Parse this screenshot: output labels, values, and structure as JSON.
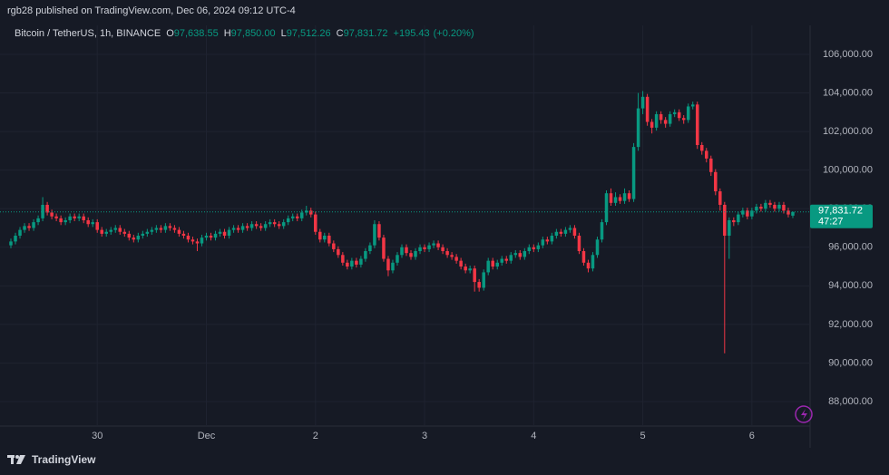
{
  "header": {
    "published": "rgb28 published on TradingView.com, Dec 06, 2024 09:12 UTC-4"
  },
  "chart_data": {
    "type": "candlestick",
    "symbol": "Bitcoin / TetherUS, 1h, BINANCE",
    "legend_fields": [
      {
        "key": "O",
        "value": 97638.55,
        "label": "97,638.55"
      },
      {
        "key": "H",
        "value": 97850,
        "label": "97,850.00"
      },
      {
        "key": "L",
        "value": 97512.26,
        "label": "97,512.26"
      },
      {
        "key": "C",
        "value": 97831.72,
        "label": "97,831.72"
      }
    ],
    "change": {
      "value": 195.43,
      "label": "+195.43"
    },
    "change_pct": {
      "value": 0.2,
      "label": "(+0.20%)"
    },
    "up_color": "#089981",
    "down_color": "#f23645",
    "last_price": {
      "value": 97831.72,
      "label": "97,831.72"
    },
    "countdown": "47:27",
    "xlim": [
      -0.4,
      174
    ],
    "xticks": [
      {
        "value": 19,
        "label": "30"
      },
      {
        "value": 43,
        "label": "Dec"
      },
      {
        "value": 67,
        "label": "2"
      },
      {
        "value": 91,
        "label": "3"
      },
      {
        "value": 115,
        "label": "4"
      },
      {
        "value": 139,
        "label": "5"
      },
      {
        "value": 163,
        "label": "6"
      }
    ],
    "ylim": [
      86730,
      106470
    ],
    "yticks": [
      {
        "value": 88000,
        "label": "88,000.00"
      },
      {
        "value": 90000,
        "label": "90,000.00"
      },
      {
        "value": 92000,
        "label": "92,000.00"
      },
      {
        "value": 94000,
        "label": "94,000.00"
      },
      {
        "value": 96000,
        "label": "96,000.00"
      },
      {
        "value": 98000,
        "label": "98,000.00"
      },
      {
        "value": 100000,
        "label": "100,000.00"
      },
      {
        "value": 102000,
        "label": "102,000.00"
      },
      {
        "value": 104000,
        "label": "104,000.00"
      },
      {
        "value": 106000,
        "label": "106,000.00"
      }
    ],
    "grid": true,
    "ohlc": [
      [
        96100,
        96450,
        95950,
        96300
      ],
      [
        96300,
        96750,
        96150,
        96600
      ],
      [
        96600,
        97050,
        96450,
        96900
      ],
      [
        96900,
        97250,
        96750,
        97100
      ],
      [
        97100,
        97250,
        96850,
        97000
      ],
      [
        97000,
        97450,
        96850,
        97300
      ],
      [
        97300,
        97650,
        97150,
        97500
      ],
      [
        97500,
        98600,
        97350,
        98200
      ],
      [
        98200,
        98350,
        97650,
        97800
      ],
      [
        97800,
        97950,
        97450,
        97600
      ],
      [
        97600,
        97750,
        97350,
        97500
      ],
      [
        97500,
        97650,
        97150,
        97300
      ],
      [
        97300,
        97550,
        97150,
        97400
      ],
      [
        97400,
        97750,
        97250,
        97600
      ],
      [
        97600,
        97750,
        97350,
        97500
      ],
      [
        97500,
        97750,
        97350,
        97600
      ],
      [
        97600,
        97750,
        97250,
        97400
      ],
      [
        97400,
        97550,
        97050,
        97200
      ],
      [
        97200,
        97450,
        97050,
        97300
      ],
      [
        97300,
        97450,
        96750,
        96900
      ],
      [
        96900,
        97050,
        96550,
        96700
      ],
      [
        96700,
        96950,
        96550,
        96800
      ],
      [
        96800,
        97050,
        96650,
        96900
      ],
      [
        96900,
        97150,
        96750,
        97000
      ],
      [
        97000,
        97150,
        96650,
        96800
      ],
      [
        96800,
        96950,
        96550,
        96700
      ],
      [
        96700,
        96850,
        96350,
        96500
      ],
      [
        96500,
        96650,
        96250,
        96400
      ],
      [
        96400,
        96750,
        96250,
        96600
      ],
      [
        96600,
        96850,
        96450,
        96700
      ],
      [
        96700,
        96950,
        96550,
        96800
      ],
      [
        96800,
        97050,
        96650,
        96900
      ],
      [
        96900,
        97150,
        96750,
        97000
      ],
      [
        97000,
        97150,
        96750,
        96900
      ],
      [
        96900,
        97250,
        96750,
        97100
      ],
      [
        97100,
        97250,
        96850,
        97000
      ],
      [
        97000,
        97150,
        96750,
        96900
      ],
      [
        96900,
        97050,
        96550,
        96700
      ],
      [
        96700,
        96850,
        96450,
        96600
      ],
      [
        96600,
        96750,
        96250,
        96400
      ],
      [
        96400,
        96550,
        96150,
        96300
      ],
      [
        96300,
        96450,
        95800,
        96200
      ],
      [
        96200,
        96650,
        96050,
        96500
      ],
      [
        96500,
        96750,
        96350,
        96600
      ],
      [
        96600,
        96750,
        96350,
        96500
      ],
      [
        96500,
        96850,
        96350,
        96700
      ],
      [
        96700,
        96950,
        96550,
        96800
      ],
      [
        96800,
        96950,
        96450,
        96600
      ],
      [
        96600,
        97050,
        96450,
        96900
      ],
      [
        96900,
        97150,
        96750,
        97000
      ],
      [
        97000,
        97150,
        96750,
        96900
      ],
      [
        96900,
        97250,
        96750,
        97100
      ],
      [
        97100,
        97250,
        96850,
        97000
      ],
      [
        97000,
        97350,
        96850,
        97200
      ],
      [
        97200,
        97350,
        96950,
        97100
      ],
      [
        97100,
        97250,
        96850,
        97000
      ],
      [
        97000,
        97350,
        96850,
        97200
      ],
      [
        97200,
        97450,
        97050,
        97300
      ],
      [
        97300,
        97450,
        97050,
        97200
      ],
      [
        97200,
        97350,
        96950,
        97100
      ],
      [
        97100,
        97450,
        96950,
        97300
      ],
      [
        97300,
        97650,
        97150,
        97500
      ],
      [
        97500,
        97750,
        97350,
        97600
      ],
      [
        97600,
        97750,
        97350,
        97500
      ],
      [
        97500,
        97950,
        97350,
        97800
      ],
      [
        97800,
        98150,
        97650,
        97900
      ],
      [
        97900,
        98050,
        97550,
        97700
      ],
      [
        97700,
        97850,
        96650,
        96800
      ],
      [
        96800,
        96950,
        96250,
        96400
      ],
      [
        96400,
        96750,
        96250,
        96600
      ],
      [
        96600,
        96750,
        96050,
        96200
      ],
      [
        96200,
        96350,
        95750,
        95900
      ],
      [
        95900,
        96050,
        95450,
        95600
      ],
      [
        95600,
        95750,
        95050,
        95200
      ],
      [
        95200,
        95350,
        94850,
        95000
      ],
      [
        95000,
        95450,
        94850,
        95300
      ],
      [
        95300,
        95450,
        94950,
        95100
      ],
      [
        95100,
        95550,
        94950,
        95400
      ],
      [
        95400,
        95950,
        95250,
        95800
      ],
      [
        95800,
        96250,
        95650,
        96100
      ],
      [
        96100,
        97400,
        95950,
        97200
      ],
      [
        97200,
        97350,
        96350,
        96500
      ],
      [
        96500,
        96650,
        95250,
        95400
      ],
      [
        95400,
        95550,
        94500,
        94800
      ],
      [
        94800,
        95350,
        94650,
        95200
      ],
      [
        95200,
        95750,
        95050,
        95600
      ],
      [
        95600,
        96150,
        95450,
        96000
      ],
      [
        96000,
        96150,
        95550,
        95700
      ],
      [
        95700,
        95850,
        95350,
        95500
      ],
      [
        95500,
        95950,
        95350,
        95800
      ],
      [
        95800,
        96150,
        95650,
        96000
      ],
      [
        96000,
        96150,
        95750,
        95900
      ],
      [
        95900,
        96250,
        95750,
        96100
      ],
      [
        96100,
        96350,
        95950,
        96200
      ],
      [
        96200,
        96350,
        95850,
        96000
      ],
      [
        96000,
        96150,
        95650,
        95800
      ],
      [
        95800,
        95950,
        95450,
        95600
      ],
      [
        95600,
        95750,
        95350,
        95500
      ],
      [
        95500,
        95650,
        95150,
        95300
      ],
      [
        95300,
        95450,
        94850,
        95000
      ],
      [
        95000,
        95150,
        94650,
        94800
      ],
      [
        94800,
        95050,
        94650,
        94900
      ],
      [
        94900,
        95050,
        93700,
        94200
      ],
      [
        94200,
        94350,
        93700,
        93900
      ],
      [
        93900,
        94850,
        93750,
        94700
      ],
      [
        94700,
        95450,
        94550,
        95300
      ],
      [
        95300,
        95450,
        94850,
        95000
      ],
      [
        95000,
        95350,
        94850,
        95200
      ],
      [
        95200,
        95550,
        95050,
        95400
      ],
      [
        95400,
        95550,
        95150,
        95300
      ],
      [
        95300,
        95750,
        95150,
        95600
      ],
      [
        95600,
        95850,
        95450,
        95700
      ],
      [
        95700,
        95850,
        95350,
        95500
      ],
      [
        95500,
        95950,
        95350,
        95800
      ],
      [
        95800,
        96150,
        95650,
        96000
      ],
      [
        96000,
        96150,
        95750,
        95900
      ],
      [
        95900,
        96250,
        95750,
        96100
      ],
      [
        96100,
        96550,
        95950,
        96400
      ],
      [
        96400,
        96550,
        96150,
        96300
      ],
      [
        96300,
        96750,
        96150,
        96600
      ],
      [
        96600,
        96950,
        96450,
        96800
      ],
      [
        96800,
        96950,
        96550,
        96700
      ],
      [
        96700,
        97050,
        96550,
        96900
      ],
      [
        96900,
        97150,
        96750,
        97000
      ],
      [
        97000,
        97150,
        96450,
        96600
      ],
      [
        96600,
        96750,
        95650,
        95800
      ],
      [
        95800,
        95950,
        95050,
        95200
      ],
      [
        95200,
        95350,
        94700,
        94900
      ],
      [
        94900,
        95750,
        94750,
        95600
      ],
      [
        95600,
        96550,
        95450,
        96400
      ],
      [
        96400,
        97450,
        96250,
        97300
      ],
      [
        97300,
        98950,
        97150,
        98800
      ],
      [
        98800,
        99050,
        98150,
        98300
      ],
      [
        98300,
        98850,
        98150,
        98600
      ],
      [
        98600,
        98750,
        98250,
        98400
      ],
      [
        98400,
        99050,
        98250,
        98800
      ],
      [
        98800,
        98950,
        98350,
        98500
      ],
      [
        98500,
        101400,
        98350,
        101200
      ],
      [
        101200,
        104000,
        101000,
        103200
      ],
      [
        103200,
        104100,
        102900,
        103800
      ],
      [
        103800,
        103950,
        102300,
        102500
      ],
      [
        102500,
        102650,
        101900,
        102200
      ],
      [
        102200,
        103050,
        102050,
        102900
      ],
      [
        102900,
        103050,
        102400,
        102600
      ],
      [
        102600,
        102750,
        102200,
        102400
      ],
      [
        102400,
        103050,
        102250,
        102900
      ],
      [
        102900,
        103150,
        102750,
        103000
      ],
      [
        103000,
        103150,
        102550,
        102700
      ],
      [
        102700,
        102850,
        102400,
        102600
      ],
      [
        102600,
        103450,
        102450,
        103300
      ],
      [
        103300,
        103550,
        103150,
        103400
      ],
      [
        103400,
        103550,
        101100,
        101300
      ],
      [
        101300,
        101450,
        100800,
        101000
      ],
      [
        101000,
        101150,
        100400,
        100600
      ],
      [
        100600,
        100750,
        99700,
        99900
      ],
      [
        99900,
        100050,
        98700,
        98900
      ],
      [
        98900,
        99050,
        97900,
        98200
      ],
      [
        98200,
        98350,
        90500,
        96600
      ],
      [
        96600,
        97550,
        95400,
        97400
      ],
      [
        97400,
        97550,
        97100,
        97300
      ],
      [
        97300,
        97850,
        97150,
        97700
      ],
      [
        97700,
        98050,
        97550,
        97900
      ],
      [
        97900,
        98050,
        97450,
        97600
      ],
      [
        97600,
        98050,
        97450,
        97900
      ],
      [
        97900,
        98250,
        97750,
        98100
      ],
      [
        98100,
        98250,
        97850,
        98000
      ],
      [
        98000,
        98450,
        97850,
        98300
      ],
      [
        98300,
        98450,
        98050,
        98200
      ],
      [
        98200,
        98350,
        97850,
        98000
      ],
      [
        98000,
        98350,
        97850,
        98200
      ],
      [
        98200,
        98350,
        97750,
        97900
      ],
      [
        97900,
        98050,
        97550,
        97700
      ],
      [
        97638.55,
        97850,
        97512.26,
        97831.72
      ]
    ]
  },
  "footer": {
    "brand": "TradingView"
  }
}
